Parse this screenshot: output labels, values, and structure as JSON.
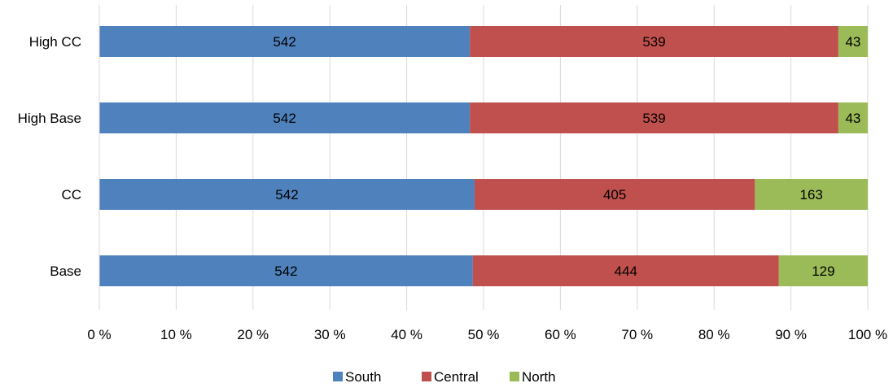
{
  "chart_data": {
    "type": "bar",
    "orientation": "horizontal",
    "stacked": "percent",
    "title": "",
    "xlabel": "",
    "ylabel": "",
    "categories": [
      "High CC",
      "High Base",
      "CC",
      "Base"
    ],
    "series": [
      {
        "name": "South",
        "color": "#4F81BD",
        "values": [
          542,
          542,
          542,
          542
        ]
      },
      {
        "name": "Central",
        "color": "#C0504D",
        "values": [
          539,
          539,
          405,
          444
        ]
      },
      {
        "name": "North",
        "color": "#9BBB59",
        "values": [
          43,
          43,
          163,
          129
        ]
      }
    ],
    "xlim": [
      0,
      100
    ],
    "x_ticks": [
      "0 %",
      "10 %",
      "20 %",
      "30 %",
      "40 %",
      "50 %",
      "60 %",
      "70 %",
      "80 %",
      "90 %",
      "100 %"
    ],
    "grid": true,
    "legend_position": "bottom"
  }
}
